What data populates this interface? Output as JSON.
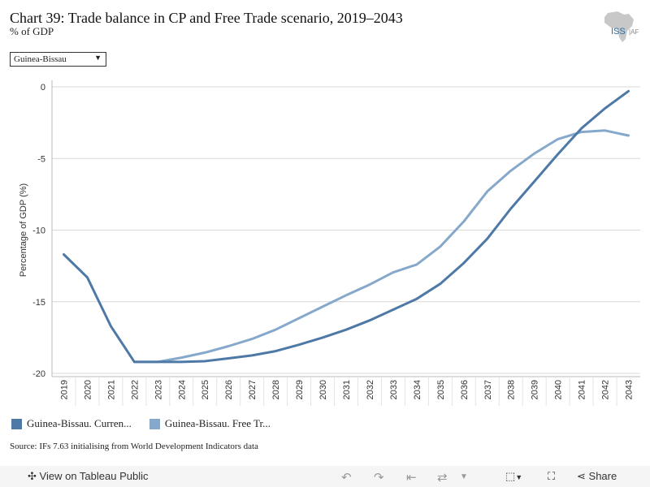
{
  "header": {
    "title": "Chart 39: Trade balance in CP and Free Trade scenario, 2019–2043",
    "subtitle": "% of GDP",
    "logo_text": "ISS|AFRICA"
  },
  "filter": {
    "selected": "Guinea-Bissau"
  },
  "chart_data": {
    "type": "line",
    "title": "Chart 39: Trade balance in CP and Free Trade scenario, 2019–2043",
    "ylabel": "Percentage of GDP (%)",
    "xlabel": "",
    "ylim": [
      -20,
      0
    ],
    "yticks": [
      0,
      -5,
      -10,
      -15,
      -20
    ],
    "grid": true,
    "legend_position": "bottom-left",
    "categories": [
      "2019",
      "2020",
      "2021",
      "2022",
      "2023",
      "2024",
      "2025",
      "2026",
      "2027",
      "2028",
      "2029",
      "2030",
      "2031",
      "2032",
      "2033",
      "2034",
      "2035",
      "2036",
      "2037",
      "2038",
      "2039",
      "2040",
      "2041",
      "2042",
      "2043"
    ],
    "series": [
      {
        "name": "Guinea-Bissau. Curren...",
        "color": "#4e79a7",
        "values": [
          -11.7,
          -13.3,
          -16.7,
          -19.2,
          -19.2,
          -19.2,
          -19.15,
          -18.95,
          -18.75,
          -18.45,
          -18.0,
          -17.5,
          -16.95,
          -16.3,
          -15.55,
          -14.8,
          -13.75,
          -12.3,
          -10.6,
          -8.5,
          -6.6,
          -4.7,
          -2.9,
          -1.5,
          -0.3
        ]
      },
      {
        "name": "Guinea-Bissau. Free Tr...",
        "color": "#86a8cb",
        "values": [
          null,
          null,
          null,
          -19.2,
          -19.2,
          -18.9,
          -18.55,
          -18.1,
          -17.6,
          -16.95,
          -16.15,
          -15.35,
          -14.55,
          -13.8,
          -12.95,
          -12.4,
          -11.15,
          -9.4,
          -7.3,
          -5.85,
          -4.65,
          -3.65,
          -3.15,
          -3.05,
          -3.4
        ]
      }
    ]
  },
  "source": "Source: IFs 7.63 initialising from World Development Indicators data",
  "toolbar": {
    "view_label": "View on Tableau Public",
    "share_label": "Share"
  }
}
